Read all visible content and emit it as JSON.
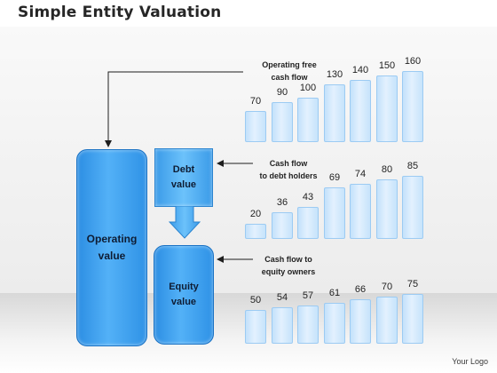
{
  "title": "Simple Entity Valuation",
  "boxes": {
    "operating": "Operating\nvalue",
    "debt": "Debt\nvalue",
    "equity": "Equity\nvalue"
  },
  "labels": {
    "operating_fcf": "Operating free\ncash flow",
    "debt_cf": "Cash flow\nto debt holders",
    "equity_cf": "Cash flow to\nequity owners"
  },
  "chart_data": [
    {
      "type": "bar",
      "name": "Operating free cash flow",
      "values": [
        70,
        90,
        100,
        130,
        140,
        150,
        160
      ]
    },
    {
      "type": "bar",
      "name": "Cash flow to debt holders",
      "values": [
        20,
        36,
        43,
        69,
        74,
        80,
        85
      ]
    },
    {
      "type": "bar",
      "name": "Cash flow to equity owners",
      "values": [
        50,
        54,
        57,
        61,
        66,
        70,
        75
      ]
    }
  ],
  "colors": {
    "box_blue": "#3aa0ef",
    "bar_fill": "#d6ebfd",
    "bar_border": "#9ccbf3"
  },
  "logo": "Your Logo"
}
